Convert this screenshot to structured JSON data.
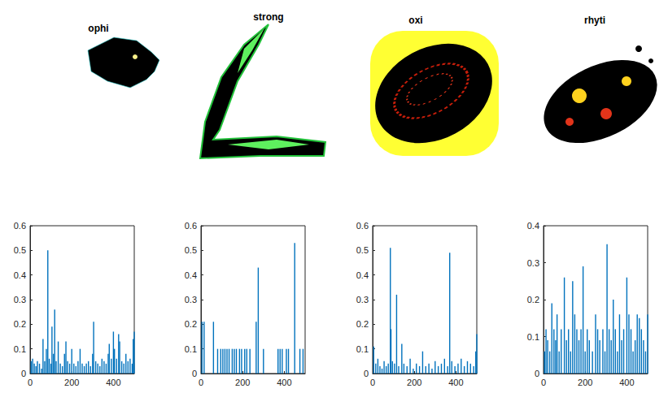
{
  "chart_data": [
    {
      "type": "bar",
      "title": "ophi",
      "color": "#0072bd",
      "grid": false,
      "x": [
        5,
        12,
        20,
        28,
        35,
        45,
        55,
        62,
        70,
        78,
        85,
        92,
        100,
        105,
        112,
        118,
        125,
        135,
        145,
        155,
        165,
        172,
        180,
        190,
        200,
        210,
        220,
        230,
        240,
        250,
        260,
        270,
        280,
        290,
        300,
        305,
        315,
        325,
        335,
        345,
        355,
        365,
        375,
        380,
        390,
        400,
        405,
        415,
        425,
        430,
        440,
        450,
        460,
        470,
        480,
        490,
        495,
        500
      ],
      "values": [
        0.05,
        0.06,
        0.04,
        0.03,
        0.05,
        0.04,
        0.02,
        0.14,
        0.05,
        0.1,
        0.5,
        0.06,
        0.04,
        0.19,
        0.08,
        0.26,
        0.05,
        0.13,
        0.04,
        0.03,
        0.08,
        0.13,
        0.05,
        0.04,
        0.1,
        0.04,
        0.03,
        0.05,
        0.1,
        0.04,
        0.03,
        0.04,
        0.05,
        0.03,
        0.08,
        0.21,
        0.05,
        0.04,
        0.03,
        0.06,
        0.05,
        0.04,
        0.08,
        0.12,
        0.06,
        0.17,
        0.1,
        0.06,
        0.16,
        0.13,
        0.05,
        0.04,
        0.08,
        0.05,
        0.06,
        0.04,
        0.14,
        0.17
      ],
      "xlim": [
        0,
        500
      ],
      "xticks": [
        0,
        200,
        400
      ],
      "ylim": [
        0,
        0.6
      ],
      "yticks": [
        0,
        0.1,
        0.2,
        0.3,
        0.4,
        0.5,
        0.6
      ]
    },
    {
      "type": "bar",
      "title": "strong",
      "color": "#0072bd",
      "grid": false,
      "x": [
        5,
        15,
        60,
        80,
        95,
        105,
        115,
        125,
        135,
        150,
        160,
        170,
        185,
        195,
        210,
        220,
        235,
        265,
        275,
        300,
        370,
        380,
        390,
        410,
        420,
        450,
        475,
        490
      ],
      "values": [
        0.21,
        0.21,
        0.21,
        0.1,
        0.1,
        0.1,
        0.1,
        0.1,
        0.1,
        0.1,
        0.1,
        0.1,
        0.1,
        0.1,
        0.1,
        0.1,
        0.1,
        0.21,
        0.43,
        0.1,
        0.1,
        0.1,
        0.1,
        0.1,
        0.1,
        0.53,
        0.1,
        0.1
      ],
      "xlim": [
        0,
        500
      ],
      "xticks": [
        0,
        200,
        400
      ],
      "ylim": [
        0,
        0.6
      ],
      "yticks": [
        0,
        0.1,
        0.2,
        0.3,
        0.4,
        0.5,
        0.6
      ]
    },
    {
      "type": "bar",
      "title": "oxi",
      "color": "#0072bd",
      "grid": false,
      "x": [
        5,
        15,
        25,
        35,
        45,
        55,
        65,
        75,
        85,
        88,
        95,
        105,
        115,
        125,
        140,
        150,
        165,
        180,
        195,
        210,
        225,
        240,
        255,
        270,
        285,
        300,
        315,
        330,
        345,
        360,
        370,
        380,
        395,
        410,
        425,
        440,
        455,
        470,
        485,
        495,
        500
      ],
      "values": [
        0.11,
        0.04,
        0.06,
        0.03,
        0.02,
        0.05,
        0.03,
        0.04,
        0.51,
        0.18,
        0.05,
        0.04,
        0.32,
        0.03,
        0.12,
        0.04,
        0.03,
        0.06,
        0.02,
        0.04,
        0.03,
        0.09,
        0.03,
        0.04,
        0.02,
        0.05,
        0.03,
        0.04,
        0.06,
        0.03,
        0.49,
        0.05,
        0.03,
        0.04,
        0.06,
        0.03,
        0.05,
        0.04,
        0.03,
        0.09,
        0.16
      ],
      "xlim": [
        0,
        500
      ],
      "xticks": [
        0,
        200,
        400
      ],
      "ylim": [
        0,
        0.6
      ],
      "yticks": [
        0,
        0.1,
        0.2,
        0.3,
        0.4,
        0.5,
        0.6
      ]
    },
    {
      "type": "bar",
      "title": "rhyti",
      "color": "#0072bd",
      "grid": false,
      "x": [
        5,
        12,
        20,
        30,
        40,
        50,
        58,
        65,
        75,
        85,
        100,
        110,
        120,
        130,
        140,
        150,
        160,
        170,
        180,
        190,
        200,
        210,
        220,
        235,
        250,
        260,
        270,
        285,
        295,
        305,
        315,
        325,
        335,
        345,
        355,
        365,
        375,
        385,
        400,
        410,
        420,
        430,
        440,
        450,
        460,
        470,
        480,
        490,
        500
      ],
      "values": [
        0.06,
        0.12,
        0.09,
        0.06,
        0.19,
        0.12,
        0.09,
        0.16,
        0.06,
        0.12,
        0.26,
        0.09,
        0.12,
        0.06,
        0.25,
        0.16,
        0.12,
        0.09,
        0.12,
        0.29,
        0.06,
        0.12,
        0.09,
        0.06,
        0.16,
        0.12,
        0.09,
        0.12,
        0.06,
        0.35,
        0.12,
        0.09,
        0.2,
        0.12,
        0.06,
        0.16,
        0.09,
        0.12,
        0.26,
        0.16,
        0.12,
        0.06,
        0.09,
        0.16,
        0.15,
        0.12,
        0.09,
        0.06,
        0.16
      ],
      "xlim": [
        0,
        500
      ],
      "xticks": [
        0,
        200,
        400
      ],
      "ylim": [
        0,
        0.4
      ],
      "yticks": [
        0,
        0.1,
        0.2,
        0.3,
        0.4
      ]
    }
  ]
}
